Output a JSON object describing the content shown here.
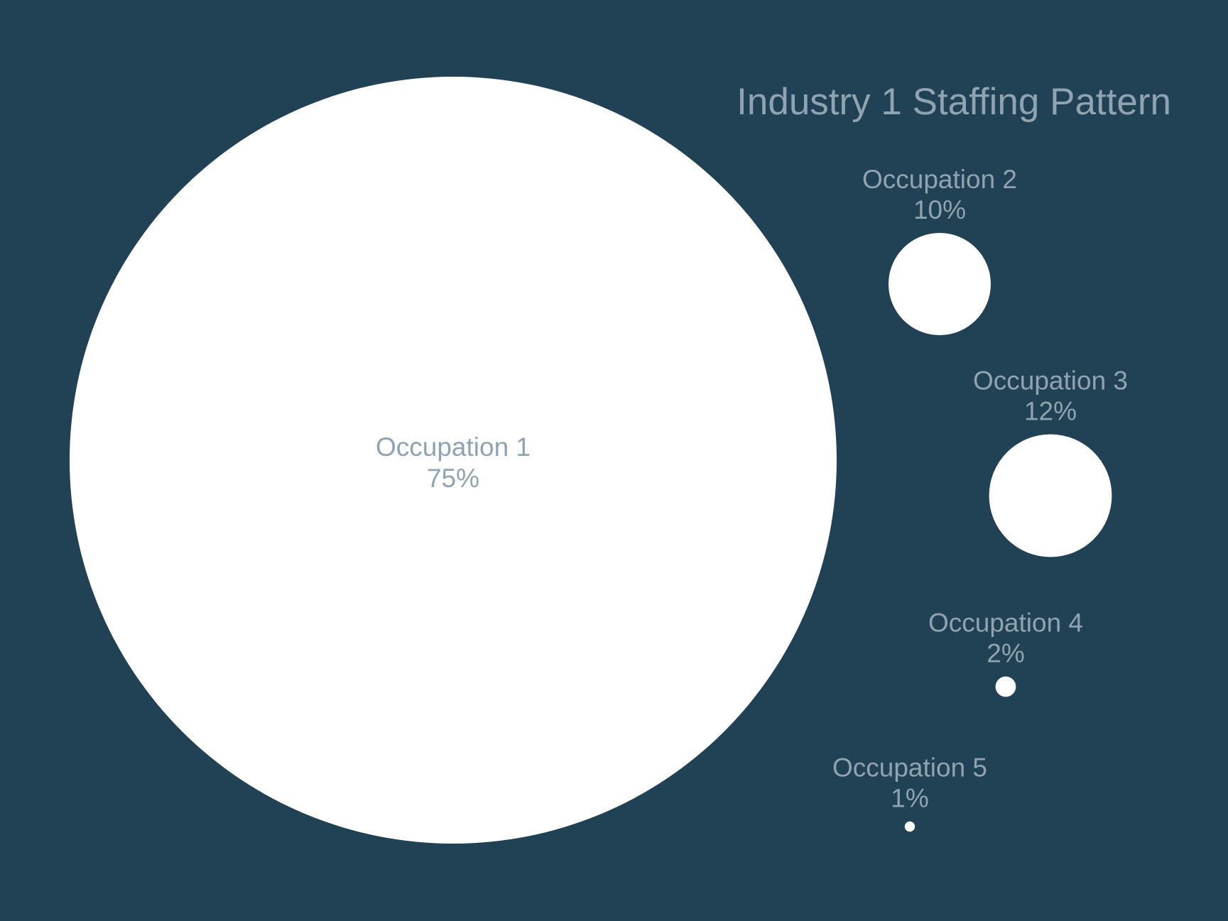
{
  "chart_data": {
    "type": "bubble",
    "title": "Industry 1 Staffing Pattern",
    "categories": [
      "Occupation 1",
      "Occupation 2",
      "Occupation 3",
      "Occupation 4",
      "Occupation 5"
    ],
    "values": [
      75,
      10,
      12,
      2,
      1
    ],
    "value_labels": [
      "75%",
      "10%",
      "12%",
      "2%",
      "1%"
    ],
    "color": "#ffffff"
  }
}
